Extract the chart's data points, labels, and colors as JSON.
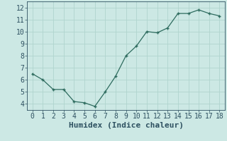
{
  "xlabel": "Humidex (Indice chaleur)",
  "x": [
    0,
    1,
    2,
    3,
    4,
    5,
    6,
    7,
    8,
    9,
    10,
    11,
    12,
    13,
    14,
    15,
    16,
    17,
    18
  ],
  "y": [
    6.5,
    6.0,
    5.2,
    5.2,
    4.2,
    4.1,
    3.8,
    5.0,
    6.3,
    8.0,
    8.8,
    10.0,
    9.9,
    10.3,
    11.5,
    11.5,
    11.8,
    11.5,
    11.3
  ],
  "line_color": "#2d6b5e",
  "marker_color": "#2d6b5e",
  "bg_color": "#cce8e4",
  "grid_color": "#b0d4ce",
  "text_color": "#2d5060",
  "ylim": [
    3.5,
    12.5
  ],
  "xlim": [
    -0.5,
    18.5
  ],
  "yticks": [
    4,
    5,
    6,
    7,
    8,
    9,
    10,
    11,
    12
  ],
  "xticks": [
    0,
    1,
    2,
    3,
    4,
    5,
    6,
    7,
    8,
    9,
    10,
    11,
    12,
    13,
    14,
    15,
    16,
    17,
    18
  ],
  "xlabel_fontsize": 8,
  "tick_fontsize": 7
}
